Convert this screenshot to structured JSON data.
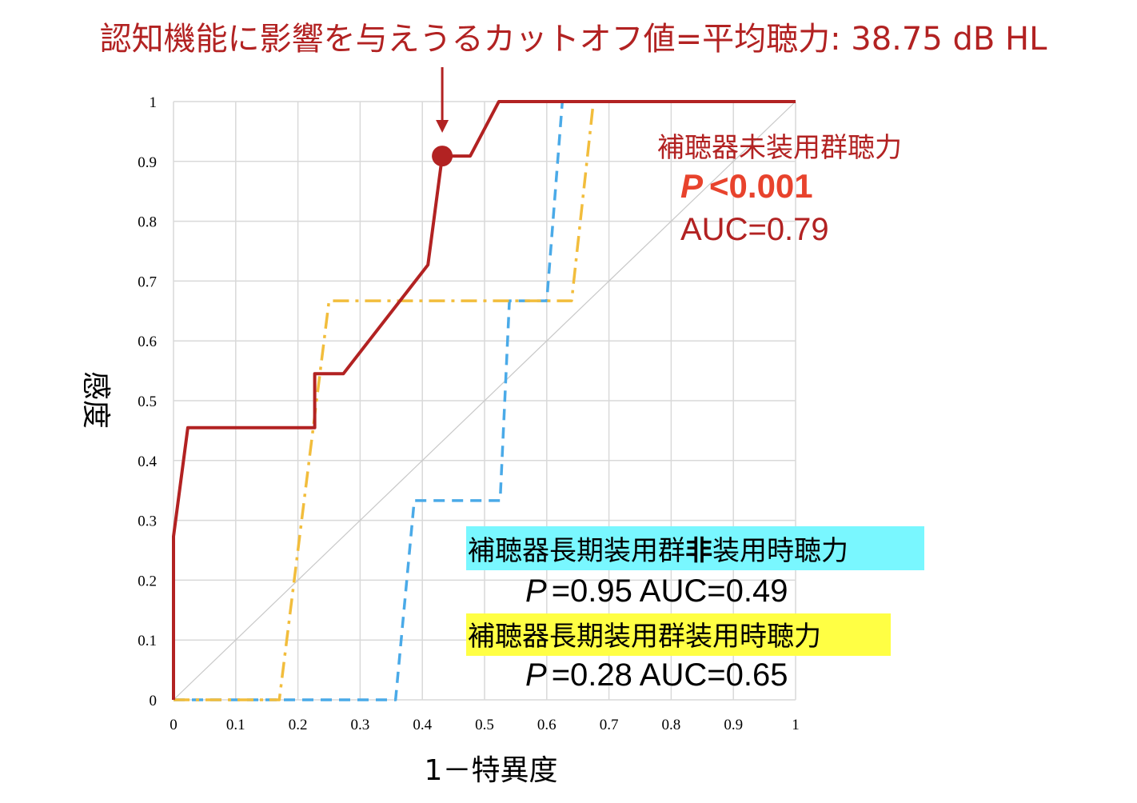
{
  "chart_data": {
    "type": "line",
    "title": "認知機能に影響を与えうるカットオフ値=平均聴力: 38.75 dB HL",
    "xlabel": "1－特異度",
    "ylabel": "感度",
    "xlim": [
      0,
      1
    ],
    "ylim": [
      0,
      1
    ],
    "x_ticks": [
      "0",
      "0.1",
      "0.2",
      "0.3",
      "0.4",
      "0.5",
      "0.6",
      "0.7",
      "0.8",
      "0.9",
      "1"
    ],
    "y_ticks": [
      "0",
      "0.1",
      "0.2",
      "0.3",
      "0.4",
      "0.5",
      "0.6",
      "0.7",
      "0.8",
      "0.9",
      "1"
    ],
    "grid": true,
    "series": [
      {
        "name": "補聴器未装用群聴力",
        "color": "#b22222",
        "style": "solid",
        "x": [
          0,
          0,
          0.023,
          0.227,
          0.227,
          0.273,
          0.409,
          0.432,
          0.477,
          0.523,
          1
        ],
        "y": [
          0,
          0.273,
          0.455,
          0.455,
          0.545,
          0.545,
          0.727,
          0.909,
          0.909,
          1,
          1
        ]
      },
      {
        "name": "補聴器長期装用群非装用時聴力",
        "color": "#4aaae8",
        "style": "dashed",
        "x": [
          0,
          0.357,
          0.387,
          0.525,
          0.54,
          0.6,
          0.625,
          1
        ],
        "y": [
          0,
          0,
          0.333,
          0.333,
          0.667,
          0.667,
          1,
          1
        ]
      },
      {
        "name": "補聴器長期装用群装用時聴力",
        "color": "#f2bd3c",
        "style": "dashdot",
        "x": [
          0,
          0.17,
          0.25,
          0.64,
          0.675,
          1
        ],
        "y": [
          0,
          0,
          0.667,
          0.667,
          1,
          1
        ]
      },
      {
        "name": "reference",
        "color": "#c8c8c8",
        "style": "thin",
        "x": [
          0,
          1
        ],
        "y": [
          0,
          1
        ]
      }
    ],
    "cutoff_point": {
      "x": 0.432,
      "y": 0.909
    }
  },
  "annotations": {
    "untreated": {
      "label": "補聴器未装用群聴力",
      "p_symbol": "P",
      "p_value": "<0.001",
      "auc": "AUC=0.79"
    },
    "longterm_unaided": {
      "label_prefix": "補聴器長期装用群",
      "label_emph": "非",
      "label_suffix": "装用時聴力",
      "p_symbol": "P",
      "stats": "=0.95 AUC=0.49",
      "highlight": "#79f7ff"
    },
    "longterm_aided": {
      "label": "補聴器長期装用群装用時聴力",
      "p_symbol": "P",
      "stats": "=0.28 AUC=0.65",
      "highlight": "#ffff44"
    }
  },
  "colors": {
    "title": "#b22222",
    "p_red": "#e8432d",
    "grid": "#d9d9d9"
  }
}
